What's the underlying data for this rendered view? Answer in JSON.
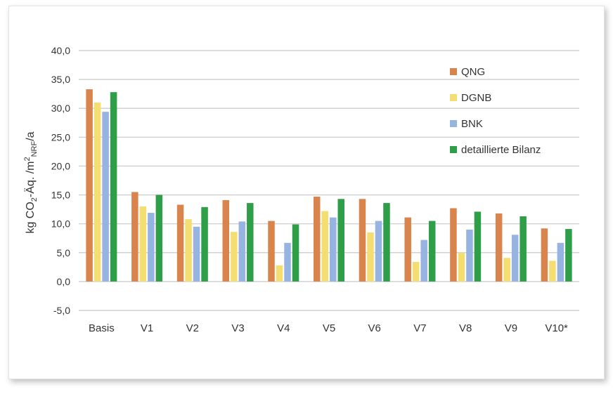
{
  "chart_data": {
    "type": "bar",
    "title": "",
    "xlabel": "",
    "ylabel": "kg CO2-Äq./m2NRF/a",
    "ylabel_parts": {
      "a": "kg CO",
      "sub1": "2",
      "b": "-Äq. /m",
      "sup": "2",
      "sub2": "NRF",
      "c": "/a"
    },
    "ylim": [
      -5,
      40
    ],
    "yticks": [
      -5,
      0,
      5,
      10,
      15,
      20,
      25,
      30,
      35,
      40
    ],
    "ytick_labels": [
      "-5,0",
      "0,0",
      "5,0",
      "10,0",
      "15,0",
      "20,0",
      "25,0",
      "30,0",
      "35,0",
      "40,0"
    ],
    "grid": true,
    "legend_position": "top-right",
    "categories": [
      "Basis",
      "V1",
      "V2",
      "V3",
      "V4",
      "V5",
      "V6",
      "V7",
      "V8",
      "V9",
      "V10*"
    ],
    "series": [
      {
        "name": "QNG",
        "color": "#d9834d",
        "values": [
          33.3,
          15.5,
          13.3,
          14.1,
          10.5,
          14.7,
          14.3,
          11.1,
          12.7,
          11.8,
          9.2
        ]
      },
      {
        "name": "DGNB",
        "color": "#f4de72",
        "values": [
          31.0,
          13.0,
          10.8,
          8.6,
          2.8,
          12.2,
          8.5,
          3.4,
          5.0,
          4.1,
          3.6
        ]
      },
      {
        "name": "BNK",
        "color": "#97b3e2",
        "values": [
          29.4,
          11.9,
          9.5,
          10.4,
          6.7,
          11.1,
          10.5,
          7.2,
          9.0,
          8.1,
          6.7
        ]
      },
      {
        "name": "detaillierte Bilanz",
        "color": "#2f9e48",
        "values": [
          32.8,
          15.0,
          12.9,
          13.6,
          9.9,
          14.3,
          13.6,
          10.5,
          12.1,
          11.3,
          9.1
        ]
      }
    ]
  }
}
